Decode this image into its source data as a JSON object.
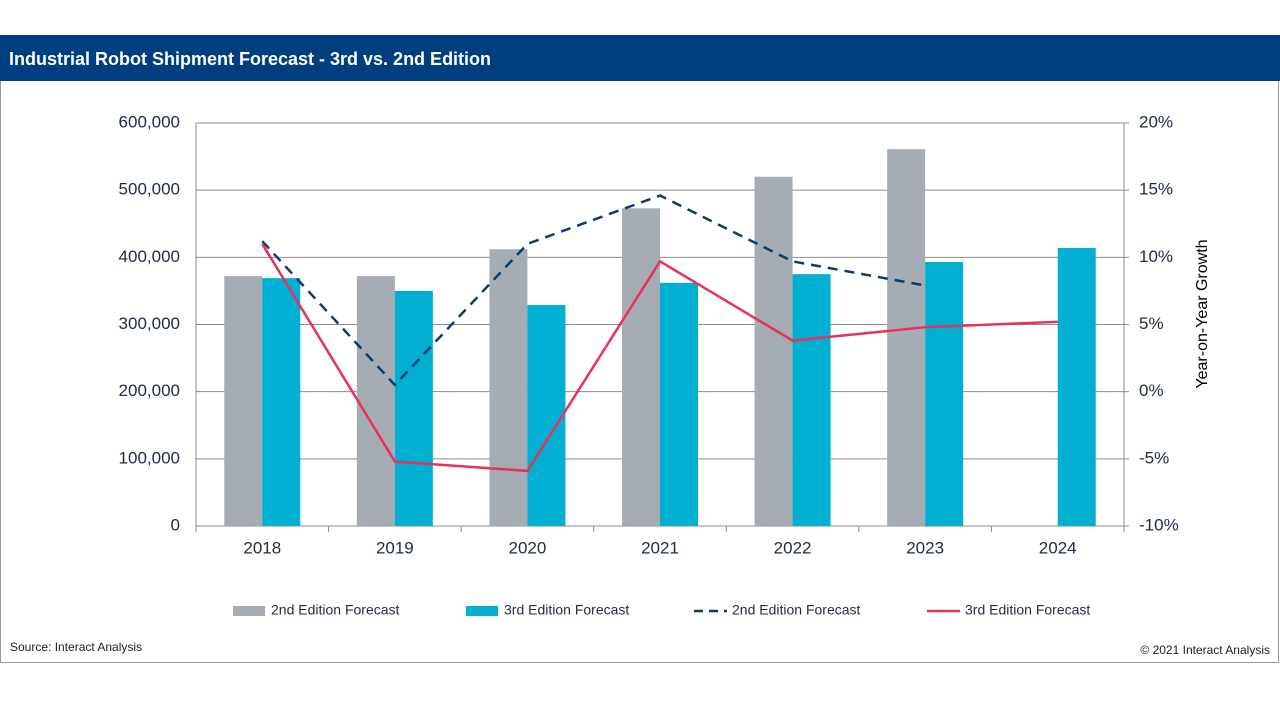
{
  "chart_data": {
    "type": "bar",
    "title": "Industrial Robot Shipment Forecast - 3rd vs. 2nd Edition",
    "source": "Source: Interact Analysis",
    "copyright": "© 2021 Interact Analysis",
    "y2label": "Year-on-Year Growth",
    "categories": [
      "2018",
      "2019",
      "2020",
      "2021",
      "2022",
      "2023",
      "2024"
    ],
    "series": [
      {
        "name": "2nd Edition Forecast",
        "type": "bar",
        "color": "#a5acb3",
        "values": [
          372000,
          372000,
          412000,
          473000,
          520000,
          561000,
          null
        ]
      },
      {
        "name": "3rd Edition Forecast",
        "type": "bar",
        "color": "#00afd1",
        "values": [
          369000,
          350000,
          329000,
          362000,
          375000,
          393000,
          414000
        ]
      },
      {
        "name": "2nd Edition Forecast",
        "type": "line",
        "dash": true,
        "axis": "y2",
        "color": "#0d3b6e",
        "values": [
          11.2,
          0.5,
          11.0,
          14.6,
          9.7,
          7.9,
          null
        ]
      },
      {
        "name": "3rd Edition Forecast",
        "type": "line",
        "dash": false,
        "axis": "y2",
        "color": "#e8315b",
        "values": [
          11.0,
          -5.2,
          -5.9,
          9.7,
          3.8,
          4.8,
          5.2
        ]
      }
    ],
    "ylim": [
      0,
      600000
    ],
    "yticks": [
      0,
      {
        "value": 100000,
        "label": "100,000"
      },
      {
        "value": 200000,
        "label": "200,000"
      },
      {
        "value": 300000,
        "label": "300,000"
      },
      {
        "value": 400000,
        "label": "400,000"
      },
      {
        "value": 500000,
        "label": "500,000"
      },
      {
        "value": 600000,
        "label": "600,000"
      }
    ],
    "y2lim": [
      -10,
      20
    ],
    "y2ticks": [
      {
        "value": -10,
        "label": "-10%"
      },
      {
        "value": -5,
        "label": "-5%"
      },
      {
        "value": 0,
        "label": "0%"
      },
      {
        "value": 5,
        "label": "5%"
      },
      {
        "value": 10,
        "label": "10%"
      },
      {
        "value": 15,
        "label": "15%"
      },
      {
        "value": 20,
        "label": "20%"
      }
    ],
    "grid": true
  }
}
